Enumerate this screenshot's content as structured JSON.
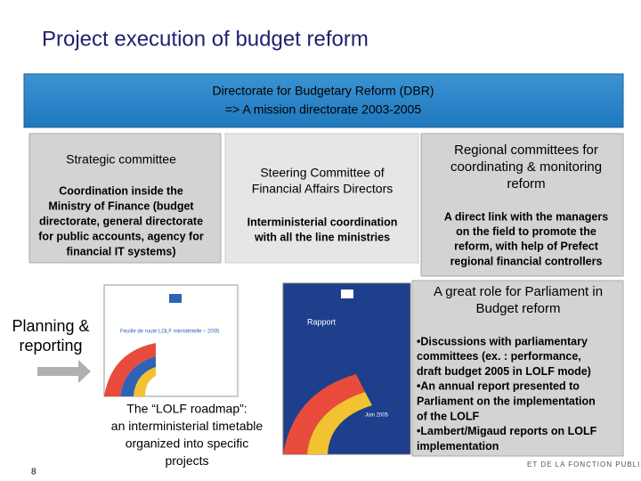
{
  "header": {
    "title": "Project execution of budget reform"
  },
  "banner": {
    "lines": [
      "Directorate for Budgetary Reform (DBR)",
      "=> A mission directorate 2003-2005"
    ]
  },
  "boxes": [
    {
      "title": [
        "Strategic committee"
      ],
      "detail": [
        "Coordination inside the",
        "Ministry of Finance (budget",
        "directorate, general directorate",
        "for public accounts, agency for",
        "financial IT systems)"
      ]
    },
    {
      "title": [
        "Steering Committee of",
        "Financial Affairs Directors"
      ],
      "detail": [
        "Interministerial coordination",
        "with all the line ministries"
      ]
    },
    {
      "title": [
        "Regional committees for",
        "coordinating & monitoring",
        "reform"
      ],
      "detail": [
        "A direct link with the managers",
        "on the field to promote the",
        "reform, with help of Prefect",
        "regional financial controllers"
      ]
    }
  ],
  "side_label": [
    "Planning &",
    "reporting"
  ],
  "documents": [
    {
      "title": "Feuille de route LOLF ministérielle – 2005"
    },
    {
      "title": "Rapport",
      "date": "Juin 2005"
    }
  ],
  "caption": [
    "The “LOLF roadmap”:",
    "an interministerial timetable",
    "organized into specific",
    "projects"
  ],
  "parliament": {
    "title": [
      "A great role for Parliament in",
      "Budget reform"
    ],
    "bullets": [
      "•Discussions with parliamentary",
      "committees (ex. : performance,",
      "draft budget 2005 in LOLF mode)",
      "•An annual report presented to",
      "Parliament on the implementation",
      "of the LOLF",
      "•Lambert/Migaud reports on LOLF",
      "implementation"
    ]
  },
  "page_number": "8",
  "footer_logo": "ET DE LA FONCTION PUBLIQUE"
}
